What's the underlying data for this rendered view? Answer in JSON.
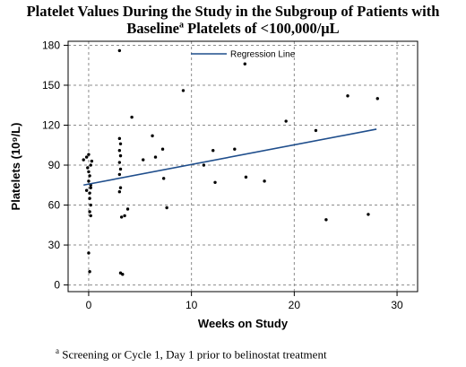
{
  "title": {
    "line1": "Platelet Values During the Study in the Subgroup of Patients with",
    "line2_pre": "Baseline",
    "line2_sup": "a",
    "line2_post": " Platelets of <100,000/μL"
  },
  "footnote": {
    "marker": "a",
    "text": " Screening or Cycle 1, Day 1 prior to belinostat treatment"
  },
  "chart_data": {
    "type": "scatter",
    "title": "Platelet Values During the Study in the Subgroup of Patients with Baseline Platelets of <100,000/μL",
    "xlabel": "Weeks on Study",
    "ylabel": "Platelets (10⁹/L)",
    "xlim": [
      -2,
      32
    ],
    "ylim": [
      -5,
      183
    ],
    "xticks": [
      0,
      10,
      20,
      30
    ],
    "yticks": [
      0,
      30,
      60,
      90,
      120,
      150,
      180
    ],
    "grid": true,
    "legend": {
      "position": "top-center",
      "entries": [
        "Regression Line"
      ]
    },
    "regression_line": {
      "name": "Regression Line",
      "x": [
        -0.5,
        28
      ],
      "y": [
        75,
        117
      ]
    },
    "points": [
      [
        -0.5,
        94
      ],
      [
        -0.2,
        96
      ],
      [
        0,
        98
      ],
      [
        -0.1,
        88
      ],
      [
        0.1,
        82
      ],
      [
        0,
        78
      ],
      [
        0.2,
        75
      ],
      [
        -0.2,
        71
      ],
      [
        0.1,
        69
      ],
      [
        0.3,
        93
      ],
      [
        0.2,
        90
      ],
      [
        0,
        85
      ],
      [
        0.1,
        65
      ],
      [
        0.2,
        60
      ],
      [
        0.1,
        55
      ],
      [
        0.2,
        52
      ],
      [
        0,
        24
      ],
      [
        0.1,
        10
      ],
      [
        0.2,
        73
      ],
      [
        3,
        176
      ],
      [
        3,
        110
      ],
      [
        3.1,
        106
      ],
      [
        3,
        101
      ],
      [
        3.1,
        97
      ],
      [
        3,
        92
      ],
      [
        3.1,
        87
      ],
      [
        3,
        83
      ],
      [
        3.1,
        73
      ],
      [
        3,
        70
      ],
      [
        3.2,
        51
      ],
      [
        3.5,
        52
      ],
      [
        3.8,
        57
      ],
      [
        3.1,
        9
      ],
      [
        3.3,
        8
      ],
      [
        4.2,
        126
      ],
      [
        5.3,
        94
      ],
      [
        6.2,
        112
      ],
      [
        6.5,
        96
      ],
      [
        7.2,
        102
      ],
      [
        7.3,
        80
      ],
      [
        7.6,
        58
      ],
      [
        9.2,
        146
      ],
      [
        11.2,
        90
      ],
      [
        12.1,
        101
      ],
      [
        12.3,
        77
      ],
      [
        14.2,
        102
      ],
      [
        15.2,
        166
      ],
      [
        15.3,
        81
      ],
      [
        17.1,
        78
      ],
      [
        19.2,
        123
      ],
      [
        22.1,
        116
      ],
      [
        23.1,
        49
      ],
      [
        25.2,
        142
      ],
      [
        27.2,
        53
      ],
      [
        28.1,
        140
      ]
    ]
  }
}
